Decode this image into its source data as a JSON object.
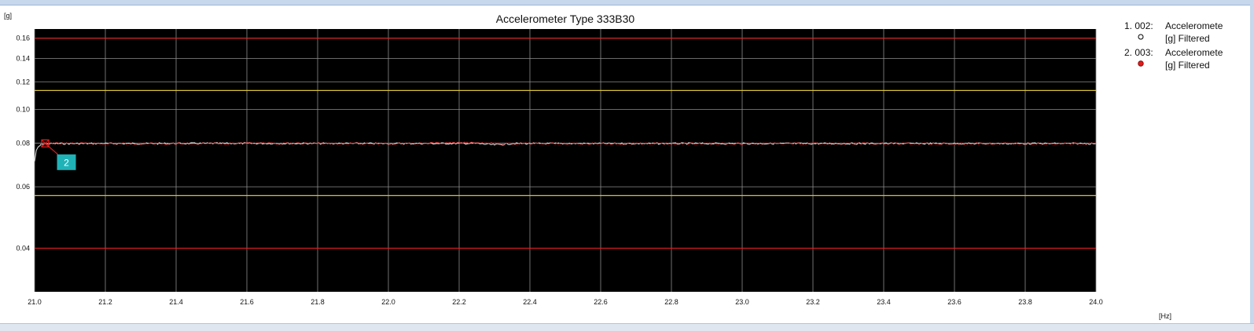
{
  "chart_data": {
    "type": "line",
    "title": "Accelerometer Type 333B30",
    "ylabel": "[g]",
    "xlabel": "[Hz]",
    "xlim": [
      21.0,
      24.0
    ],
    "ylim": [
      0.03,
      0.17
    ],
    "y_scale": "log",
    "grid": true,
    "legend_position": "right",
    "x_ticks": [
      "21.0",
      "21.2",
      "21.4",
      "21.6",
      "21.8",
      "22.0",
      "22.2",
      "22.4",
      "22.6",
      "22.8",
      "23.0",
      "23.2",
      "23.4",
      "23.6",
      "23.8",
      "24.0"
    ],
    "x_tick_values": [
      21.0,
      21.2,
      21.4,
      21.6,
      21.8,
      22.0,
      22.2,
      22.4,
      22.6,
      22.8,
      23.0,
      23.2,
      23.4,
      23.6,
      23.8,
      24.0
    ],
    "y_ticks": [
      "0.04",
      "0.06",
      "0.08",
      "0.10",
      "0.12",
      "0.14",
      "0.16"
    ],
    "y_tick_values": [
      0.04,
      0.06,
      0.08,
      0.1,
      0.12,
      0.14,
      0.16
    ],
    "limit_lines": [
      {
        "value": 0.16,
        "color": "#e01c1c"
      },
      {
        "value": 0.1133,
        "color": "#d7c23a"
      },
      {
        "value": 0.0566,
        "color": "#d7c23a"
      },
      {
        "value": 0.04,
        "color": "#e01c1c"
      }
    ],
    "series": [
      {
        "name": "1. 002:",
        "legend_line1": "Acceleromete",
        "legend_line2": "[g] Filtered",
        "marker": "open",
        "color": "#ffffff",
        "x": [
          21.0,
          21.005,
          21.01,
          21.02,
          21.05,
          21.3,
          21.6,
          22.0,
          22.25,
          22.3,
          22.35,
          22.6,
          23.0,
          23.5,
          24.0
        ],
        "y": [
          0.071,
          0.076,
          0.078,
          0.0795,
          0.0798,
          0.0798,
          0.0799,
          0.0798,
          0.0799,
          0.0791,
          0.0798,
          0.0798,
          0.0798,
          0.0798,
          0.0798
        ]
      },
      {
        "name": "2. 003:",
        "legend_line1": "Acceleromete",
        "legend_line2": "[g] Filtered",
        "marker": "filled",
        "color": "#e01c1c",
        "x": [
          21.03,
          21.3,
          21.6,
          22.0,
          22.25,
          22.3,
          22.6,
          23.0,
          23.5,
          24.0
        ],
        "y": [
          0.0799,
          0.0798,
          0.0799,
          0.0798,
          0.0803,
          0.0798,
          0.0798,
          0.0798,
          0.0798,
          0.0798
        ]
      }
    ],
    "annotations": [
      {
        "label": "2",
        "x": 21.03,
        "y": 0.0799,
        "color": "#1fb3b8"
      }
    ]
  }
}
